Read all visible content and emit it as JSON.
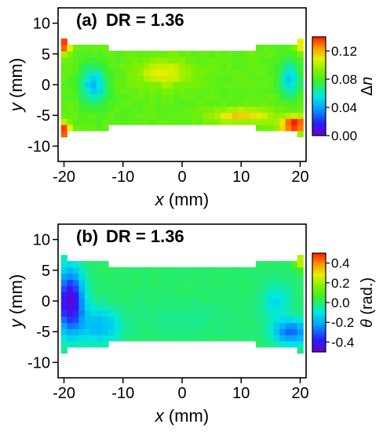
{
  "chart_data": [
    {
      "type": "heatmap",
      "panel_label": "(a)",
      "title": "DR = 1.36",
      "xlabel_var": "x",
      "xlabel_unit": " (mm)",
      "ylabel_var": "y",
      "ylabel_unit": " (mm)",
      "xlim": [
        -21,
        21
      ],
      "ylim": [
        -12.5,
        12.5
      ],
      "xticks": [
        -20,
        -10,
        0,
        10,
        20
      ],
      "xtick_labels": [
        "-20",
        "-10",
        "0",
        "10",
        "20"
      ],
      "yticks": [
        -10,
        -5,
        0,
        5,
        10
      ],
      "ytick_labels": [
        "-10",
        "-5",
        "0",
        "5",
        "10"
      ],
      "colorbar": {
        "label_prefix": "Δ",
        "label_var": "n",
        "range": [
          0.0,
          0.14
        ],
        "ticks": [
          0.0,
          0.04,
          0.08,
          0.12
        ],
        "tick_labels": [
          "0.00",
          "0.04",
          "0.08",
          "0.12"
        ],
        "colormap": "rainbow (violet-blue-cyan-green-yellow-red)"
      },
      "grid": false,
      "x_range_data": [
        -20.5,
        20.5
      ],
      "y_range_data": [
        -8.5,
        7.5
      ],
      "background_value": 0.085,
      "features": [
        {
          "desc": "left low region",
          "x": -15,
          "y": 0,
          "value": 0.05
        },
        {
          "desc": "right low region",
          "x": 18,
          "y": 1,
          "value": 0.05
        },
        {
          "desc": "central-upper high band",
          "x": -3,
          "y": 2,
          "value": 0.11
        },
        {
          "desc": "lower right high band",
          "x": 10,
          "y": -5,
          "value": 0.11
        },
        {
          "desc": "upper left corner",
          "x": -20,
          "y": 6.5,
          "value": 0.14
        },
        {
          "desc": "lower left corner",
          "x": -20,
          "y": -7.5,
          "value": 0.14
        },
        {
          "desc": "lower right corner",
          "x": 19,
          "y": -6.5,
          "value": 0.14
        },
        {
          "desc": "upper right corner",
          "x": 20,
          "y": 6.5,
          "value": 0.11
        }
      ]
    },
    {
      "type": "heatmap",
      "panel_label": "(b)",
      "title": "DR = 1.36",
      "xlabel_var": "x",
      "xlabel_unit": " (mm)",
      "ylabel_var": "y",
      "ylabel_unit": " (mm)",
      "xlim": [
        -21,
        21
      ],
      "ylim": [
        -12.5,
        12.5
      ],
      "xticks": [
        -20,
        -10,
        0,
        10,
        20
      ],
      "xtick_labels": [
        "-20",
        "-10",
        "0",
        "10",
        "20"
      ],
      "yticks": [
        -10,
        -5,
        0,
        5,
        10
      ],
      "ytick_labels": [
        "-10",
        "-5",
        "0",
        "5",
        "10"
      ],
      "colorbar": {
        "label_var": "θ",
        "label_unit": " (rad.)",
        "range": [
          -0.5,
          0.5
        ],
        "ticks": [
          -0.4,
          -0.2,
          0.0,
          0.2,
          0.4
        ],
        "tick_labels": [
          "-0.4",
          "-0.2",
          "0.0",
          "0.2",
          "0.4"
        ],
        "colormap": "rainbow (violet-blue-cyan-green-yellow-red)"
      },
      "grid": false,
      "x_range_data": [
        -20.5,
        20.5
      ],
      "y_range_data": [
        -8.5,
        7.5
      ],
      "background_value": 0.0,
      "features": [
        {
          "desc": "left strong negative region",
          "x": -18.5,
          "y": 0,
          "value": -0.45
        },
        {
          "desc": "lower right negative region",
          "x": 18,
          "y": -5,
          "value": -0.3
        },
        {
          "desc": "upper right corner",
          "x": 20,
          "y": 6.5,
          "value": 0.25
        }
      ]
    }
  ]
}
